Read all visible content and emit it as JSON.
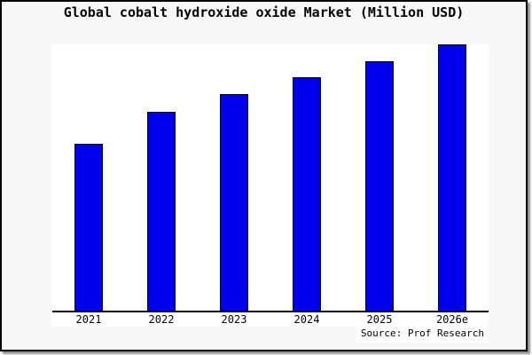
{
  "title": "Global cobalt hydroxide oxide Market (Million USD)",
  "source": "Source: Prof Research",
  "colors": {
    "bar_fill": "#0000EE",
    "bar_border": "#000000",
    "plot_background": "#FFFFFF",
    "frame_background": "#F8F8F8",
    "frame_border": "#000000",
    "axis": "#000000"
  },
  "chart_data": {
    "type": "bar",
    "title": "Global cobalt hydroxide oxide Market (Million USD)",
    "categories": [
      "2021",
      "2022",
      "2023",
      "2024",
      "2025",
      "2026e"
    ],
    "values": [
      62.7,
      74.7,
      81.3,
      87.7,
      93.7,
      100
    ],
    "value_scale": "relative bar height, tallest bar (2026e) = 100; chart displays no numeric y-axis, gridlines or data labels",
    "xlabel": "",
    "ylabel": "",
    "ylim": [
      0,
      100
    ],
    "grid": false,
    "legend": false,
    "bar_color": "#0000EE",
    "annotation": "Source: Prof Research"
  }
}
